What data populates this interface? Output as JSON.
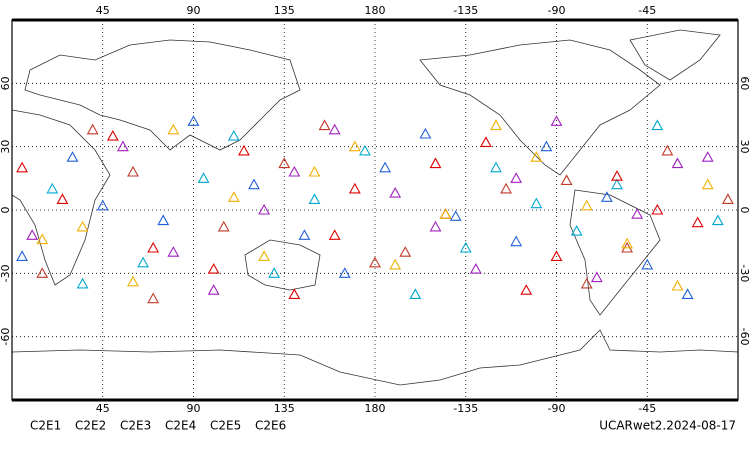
{
  "chart_data": {
    "type": "scatter",
    "xlim": [
      0,
      360
    ],
    "ylim": [
      -90,
      90
    ],
    "xticks": [
      45,
      90,
      135,
      180,
      {
        "value": 225,
        "label": "-135"
      },
      {
        "value": 270,
        "label": "-90"
      },
      {
        "value": 315,
        "label": "-45"
      }
    ],
    "yticks": [
      -60,
      -30,
      0,
      30,
      60
    ],
    "grid": true,
    "annotation": "UCARwet2.2024-08-17",
    "series": [
      {
        "name": "C2E1",
        "color": "#00a8d0",
        "x": [
          20,
          65,
          110,
          150,
          200,
          240,
          280,
          320,
          350,
          35,
          95,
          175,
          225,
          300,
          130,
          260
        ],
        "values": [
          10,
          -25,
          35,
          5,
          -40,
          20,
          -10,
          40,
          -5,
          -35,
          15,
          28,
          -18,
          12,
          -30,
          3
        ]
      },
      {
        "name": "C2E2",
        "color": "#a020c0",
        "x": [
          10,
          55,
          100,
          140,
          190,
          230,
          270,
          310,
          345,
          80,
          160,
          210,
          290,
          330,
          125,
          250
        ],
        "values": [
          -12,
          30,
          -38,
          18,
          8,
          -28,
          42,
          -2,
          25,
          -20,
          38,
          -8,
          -32,
          22,
          0,
          15
        ]
      },
      {
        "name": "C2E3",
        "color": "#2060d8",
        "x": [
          30,
          75,
          120,
          165,
          205,
          250,
          295,
          335,
          5,
          90,
          145,
          185,
          265,
          315,
          45,
          220
        ],
        "values": [
          25,
          -5,
          12,
          -30,
          36,
          -15,
          6,
          -40,
          -22,
          42,
          -12,
          20,
          30,
          -26,
          2,
          -3
        ]
      },
      {
        "name": "C2E4",
        "color": "#c03828",
        "x": [
          15,
          60,
          105,
          155,
          195,
          245,
          285,
          325,
          355,
          70,
          135,
          215,
          275,
          305,
          40,
          180
        ],
        "values": [
          -30,
          18,
          -8,
          40,
          -20,
          10,
          -35,
          28,
          5,
          -42,
          22,
          -2,
          14,
          -18,
          38,
          -25
        ]
      },
      {
        "name": "C2E5",
        "color": "#e00000",
        "x": [
          25,
          70,
          115,
          160,
          210,
          255,
          300,
          340,
          50,
          100,
          170,
          235,
          270,
          320,
          140,
          5
        ],
        "values": [
          5,
          -18,
          28,
          -12,
          22,
          -38,
          16,
          -6,
          35,
          -28,
          10,
          32,
          -22,
          0,
          -40,
          20
        ]
      },
      {
        "name": "C2E6",
        "color": "#f0b000",
        "x": [
          35,
          80,
          125,
          170,
          215,
          260,
          305,
          345,
          60,
          110,
          190,
          240,
          285,
          330,
          150,
          15
        ],
        "values": [
          -8,
          38,
          -22,
          30,
          -2,
          25,
          -16,
          12,
          -34,
          6,
          -26,
          40,
          2,
          -36,
          18,
          -14
        ]
      }
    ]
  }
}
